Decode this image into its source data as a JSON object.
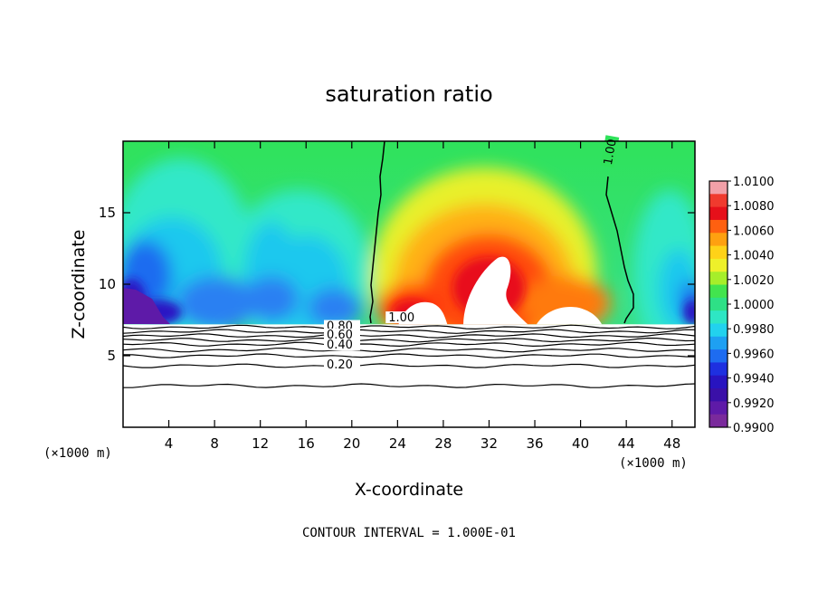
{
  "chart_data": {
    "type": "contour",
    "title": "saturation ratio",
    "xlabel": "X-coordinate",
    "ylabel": "Z-coordinate",
    "x_unit_left": "(×1000 m)",
    "x_unit_right": "(×1000 m)",
    "xlim": [
      0,
      50
    ],
    "ylim": [
      0,
      20
    ],
    "x_ticks": [
      4,
      8,
      12,
      16,
      20,
      24,
      28,
      32,
      36,
      40,
      44,
      48
    ],
    "y_ticks": [
      5,
      10,
      15
    ],
    "colorbar": {
      "labels": [
        "1.0100",
        "1.0080",
        "1.0060",
        "1.0040",
        "1.0020",
        "1.0000",
        "0.9980",
        "0.9960",
        "0.9940",
        "0.9920",
        "0.9900"
      ],
      "min": 0.99,
      "max": 1.01
    },
    "contour_labels": [
      {
        "text": "1.00",
        "value": 1.0,
        "x": 23.2,
        "y": 7.4
      },
      {
        "text": "1.00",
        "value": 1.0,
        "x": 42.7,
        "y": 18.3
      },
      {
        "text": "0.80",
        "value": 0.8,
        "x": 17.8,
        "y": 6.8
      },
      {
        "text": "0.60",
        "value": 0.6,
        "x": 17.8,
        "y": 6.2
      },
      {
        "text": "0.40",
        "value": 0.4,
        "x": 17.8,
        "y": 5.5
      },
      {
        "text": "0.20",
        "value": 0.2,
        "x": 17.8,
        "y": 4.1
      }
    ],
    "contour_levels": [
      {
        "value": 0.9,
        "z": 7.0
      },
      {
        "value": 0.8,
        "z": 6.7
      },
      {
        "value": 0.7,
        "z": 6.4
      },
      {
        "value": 0.6,
        "z": 6.1
      },
      {
        "value": 0.5,
        "z": 5.8
      },
      {
        "value": 0.4,
        "z": 5.4
      },
      {
        "value": 0.3,
        "z": 5.0
      },
      {
        "value": 0.2,
        "z": 4.3
      },
      {
        "value": 0.1,
        "z": 2.9
      }
    ],
    "cloud_base_z": 7.2,
    "contour_interval_note": "CONTOUR INTERVAL = 1.000E-01"
  }
}
